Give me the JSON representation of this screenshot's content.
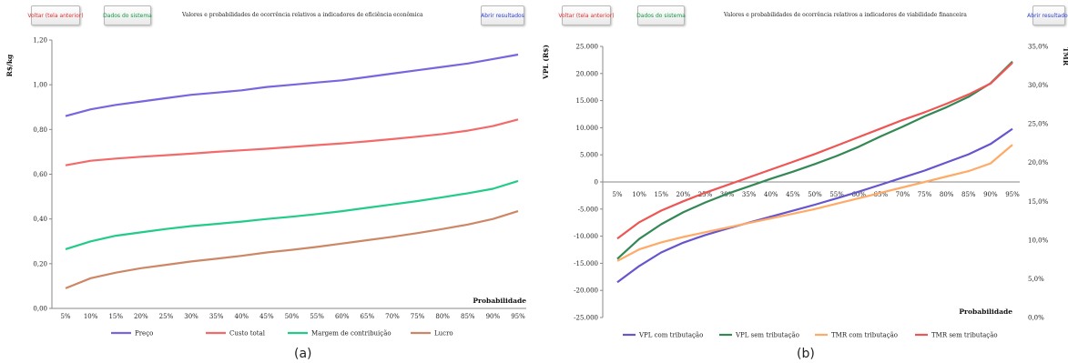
{
  "panels": [
    {
      "caption": "(a)",
      "buttons": {
        "back": "Voltar (tela anterior)",
        "system": "Dados do sistema",
        "results": "Abrir resultados"
      },
      "title": "Valores e probabilidades de ocorrência relativos a indicadores de eficiência econômica"
    },
    {
      "caption": "(b)",
      "buttons": {
        "back": "Voltar (tela anterior)",
        "system": "Dados do sistema",
        "results": "Abrir resultados"
      },
      "title": "Valores e probabilidades de ocorrência relativos a indicadores de viabilidade financeira"
    }
  ],
  "chart_data": [
    {
      "type": "line",
      "title": "Valores e probabilidades de ocorrência relativos a indicadores de eficiência econômica",
      "xlabel": "Probabilidade",
      "ylabel": "R$/kg",
      "ylim": [
        0,
        1.2
      ],
      "yticks": [
        "0,00",
        "0,20",
        "0,40",
        "0,60",
        "0,80",
        "1,00",
        "1,20"
      ],
      "x": [
        "5%",
        "10%",
        "15%",
        "20%",
        "25%",
        "30%",
        "35%",
        "40%",
        "45%",
        "50%",
        "55%",
        "60%",
        "65%",
        "70%",
        "75%",
        "80%",
        "85%",
        "90%",
        "95%"
      ],
      "grid": false,
      "legend": "bottom",
      "series": [
        {
          "name": "Preço",
          "color": "#7766dd",
          "values": [
            0.86,
            0.89,
            0.91,
            0.925,
            0.94,
            0.955,
            0.965,
            0.975,
            0.99,
            1.0,
            1.01,
            1.02,
            1.035,
            1.05,
            1.065,
            1.08,
            1.095,
            1.115,
            1.135
          ]
        },
        {
          "name": "Custo total",
          "color": "#f26a6a",
          "values": [
            0.64,
            0.66,
            0.67,
            0.678,
            0.685,
            0.692,
            0.7,
            0.707,
            0.714,
            0.722,
            0.73,
            0.738,
            0.747,
            0.757,
            0.768,
            0.78,
            0.795,
            0.815,
            0.845
          ]
        },
        {
          "name": "Margem de contribuição",
          "color": "#22cc88",
          "values": [
            0.265,
            0.3,
            0.325,
            0.34,
            0.355,
            0.368,
            0.378,
            0.388,
            0.4,
            0.41,
            0.422,
            0.435,
            0.45,
            0.465,
            0.48,
            0.497,
            0.515,
            0.535,
            0.57
          ]
        },
        {
          "name": "Lucro",
          "color": "#cc8866",
          "values": [
            0.09,
            0.135,
            0.16,
            0.18,
            0.195,
            0.21,
            0.222,
            0.235,
            0.25,
            0.262,
            0.275,
            0.29,
            0.305,
            0.32,
            0.337,
            0.355,
            0.375,
            0.4,
            0.435
          ]
        }
      ]
    },
    {
      "type": "line",
      "title": "Valores e probabilidades de ocorrência relativos a indicadores de viabilidade financeira",
      "xlabel": "Probabilidade",
      "ylabel": "VPL (R$)",
      "ylabel_right": "TMR",
      "ylim": [
        -25000,
        25000
      ],
      "ylim_right": [
        0,
        0.35
      ],
      "yticks": [
        "-25.000",
        "-20.000",
        "-15.000",
        "-10.000",
        "-5.000",
        "0",
        "5.000",
        "10.000",
        "15.000",
        "20.000",
        "25.000"
      ],
      "yticks_right": [
        "0,0%",
        "5,0%",
        "10,0%",
        "15,0%",
        "20,0%",
        "25,0%",
        "30,0%",
        "35,0%"
      ],
      "x": [
        "5%",
        "10%",
        "15%",
        "20%",
        "25%",
        "30%",
        "35%",
        "40%",
        "45%",
        "50%",
        "55%",
        "60%",
        "65%",
        "70%",
        "75%",
        "80%",
        "85%",
        "90%",
        "95%"
      ],
      "grid": false,
      "legend": "bottom",
      "series": [
        {
          "name": "VPL com tributação",
          "axis": "left",
          "color": "#6655cc",
          "values": [
            -18500,
            -15500,
            -13000,
            -11200,
            -9800,
            -8600,
            -7500,
            -6400,
            -5300,
            -4200,
            -3000,
            -1800,
            -500,
            800,
            2100,
            3600,
            5100,
            7000,
            9800
          ]
        },
        {
          "name": "VPL sem tributação",
          "axis": "left",
          "color": "#338855",
          "values": [
            -14200,
            -10500,
            -7800,
            -5600,
            -3800,
            -2200,
            -800,
            600,
            1900,
            3300,
            4800,
            6500,
            8400,
            10200,
            12100,
            13800,
            15700,
            18200,
            22200
          ]
        },
        {
          "name": "TMR com tributação",
          "axis": "right",
          "color": "#ffaa66",
          "values": [
            0.073,
            0.088,
            0.097,
            0.104,
            0.11,
            0.116,
            0.122,
            0.128,
            0.134,
            0.14,
            0.147,
            0.154,
            0.161,
            0.168,
            0.175,
            0.182,
            0.189,
            0.199,
            0.223
          ]
        },
        {
          "name": "TMR sem tributação",
          "axis": "right",
          "color": "#ee5555",
          "values": [
            0.102,
            0.123,
            0.138,
            0.15,
            0.161,
            0.171,
            0.181,
            0.191,
            0.201,
            0.211,
            0.222,
            0.233,
            0.244,
            0.255,
            0.265,
            0.276,
            0.288,
            0.302,
            0.329
          ]
        }
      ]
    }
  ]
}
